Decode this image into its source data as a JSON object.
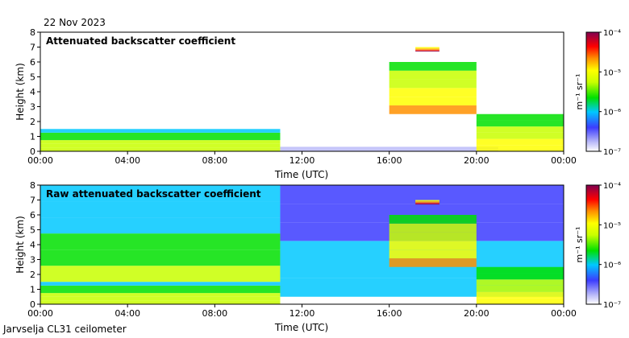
{
  "date": "22 Nov 2023",
  "footer": "Jarvselja CL31 ceilometer",
  "chart_data": [
    {
      "type": "heatmap",
      "title": "Attenuated backscatter coefficient",
      "xlabel": "Time (UTC)",
      "ylabel": "Height (km)",
      "x_ticks": [
        "00:00",
        "04:00",
        "08:00",
        "12:00",
        "16:00",
        "20:00",
        "00:00"
      ],
      "y_ticks": [
        0,
        1,
        2,
        3,
        4,
        5,
        6,
        7,
        8
      ],
      "xlim_hours": [
        0,
        24
      ],
      "ylim_km": [
        0,
        8
      ],
      "colorbar": {
        "label": "m⁻¹ sr⁻¹",
        "ticks": [
          "10⁻⁷",
          "10⁻⁶",
          "10⁻⁵",
          "10⁻⁴"
        ],
        "scale": "log"
      },
      "features": [
        {
          "name": "boundary-layer",
          "start_h": 0,
          "end_h": 11.0,
          "base_km": 0,
          "top_km": 1.5,
          "level": 0.6
        },
        {
          "name": "low-signal-surface",
          "start_h": 11.0,
          "end_h": 21.0,
          "base_km": 0,
          "top_km": 0.3,
          "level": 0.15
        },
        {
          "name": "cloud-layer-high",
          "start_h": 17.2,
          "end_h": 18.3,
          "base_km": 6.7,
          "top_km": 7.0,
          "level": 0.98
        },
        {
          "name": "descending-layer",
          "start_h": 16.0,
          "end_h": 20.0,
          "base_km": 2.5,
          "top_km": 6.0,
          "level": 0.78
        },
        {
          "name": "late-cloud",
          "start_h": 20.0,
          "end_h": 24.0,
          "base_km": 0,
          "top_km": 2.5,
          "level": 0.7
        }
      ]
    },
    {
      "type": "heatmap",
      "title": "Raw attenuated backscatter coefficient",
      "xlabel": "Time (UTC)",
      "ylabel": "Height (km)",
      "x_ticks": [
        "00:00",
        "04:00",
        "08:00",
        "12:00",
        "16:00",
        "20:00",
        "00:00"
      ],
      "y_ticks": [
        0,
        1,
        2,
        3,
        4,
        5,
        6,
        7,
        8
      ],
      "xlim_hours": [
        0,
        24
      ],
      "ylim_km": [
        0,
        8
      ],
      "colorbar": {
        "label": "m⁻¹ sr⁻¹",
        "ticks": [
          "10⁻⁷",
          "10⁻⁶",
          "10⁻⁵",
          "10⁻⁴"
        ],
        "scale": "log"
      },
      "features": [
        {
          "name": "noise-background-day",
          "start_h": 0,
          "end_h": 11.0,
          "base_km": 1.5,
          "top_km": 8,
          "level": 0.5
        },
        {
          "name": "noise-background-night",
          "start_h": 11.0,
          "end_h": 24.0,
          "base_km": 0.5,
          "top_km": 8,
          "level": 0.35
        },
        {
          "name": "boundary-layer",
          "start_h": 0,
          "end_h": 11.0,
          "base_km": 0,
          "top_km": 1.5,
          "level": 0.6
        },
        {
          "name": "cloud-layer-high",
          "start_h": 17.2,
          "end_h": 18.3,
          "base_km": 6.7,
          "top_km": 7.0,
          "level": 0.98
        },
        {
          "name": "descending-layer",
          "start_h": 16.0,
          "end_h": 20.0,
          "base_km": 2.5,
          "top_km": 6.0,
          "level": 0.78
        },
        {
          "name": "late-cloud",
          "start_h": 20.0,
          "end_h": 24.0,
          "base_km": 0,
          "top_km": 2.5,
          "level": 0.7
        }
      ]
    }
  ]
}
